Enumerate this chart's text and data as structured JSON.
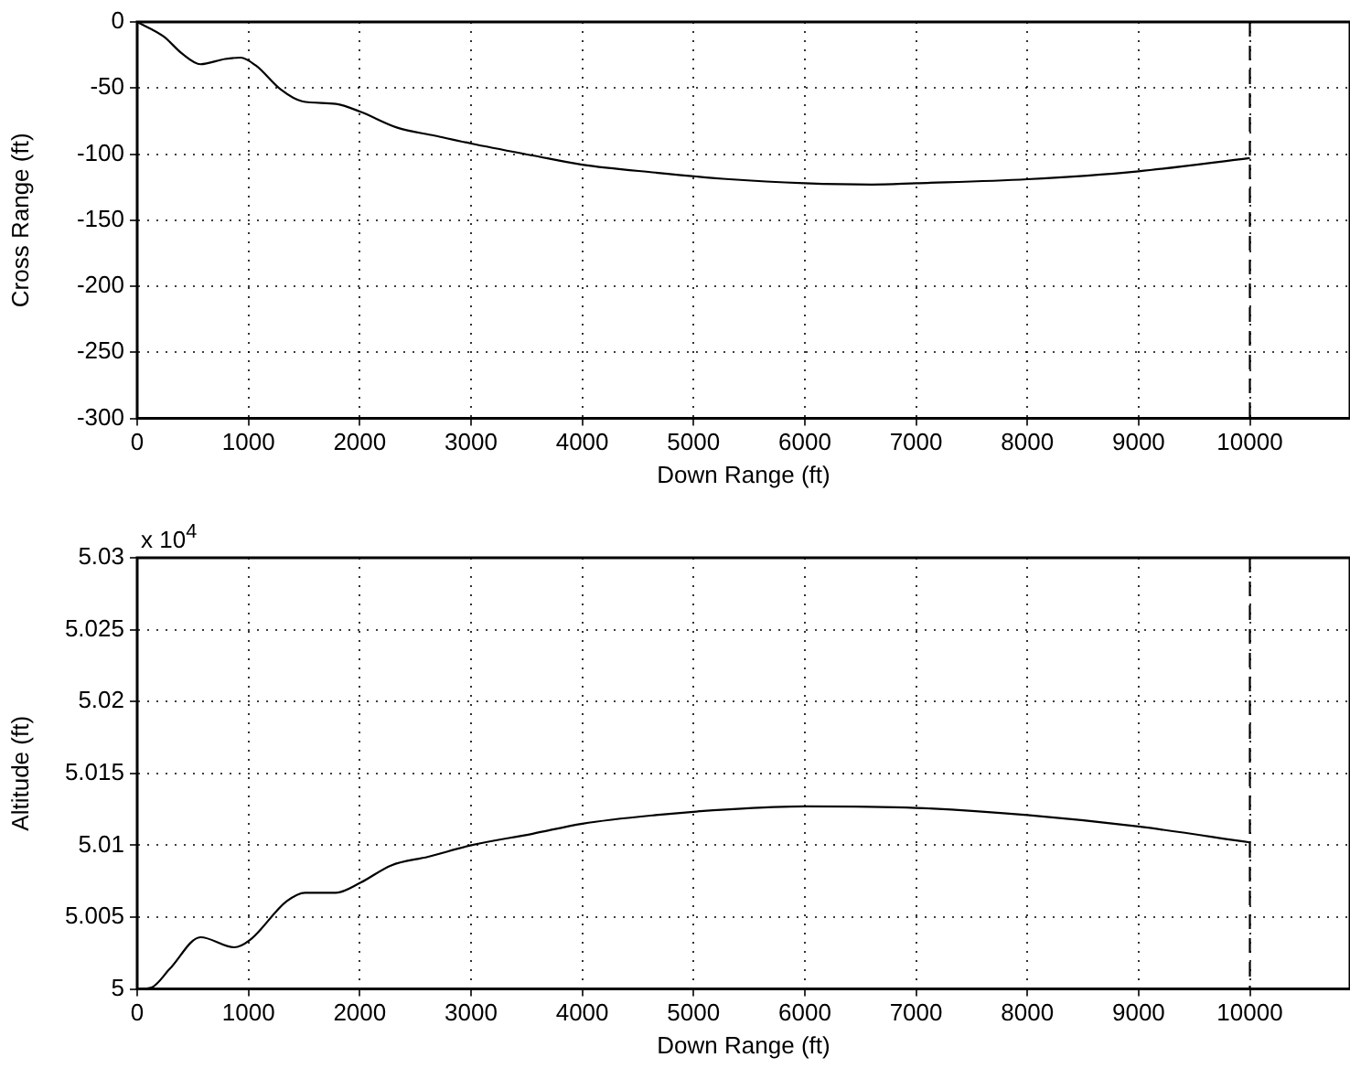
{
  "chart_data": [
    {
      "type": "line",
      "xlabel": "Down Range (ft)",
      "ylabel": "Cross Range (ft)",
      "xlim": [
        0,
        10900
      ],
      "xticks": [
        0,
        1000,
        2000,
        3000,
        4000,
        5000,
        6000,
        7000,
        8000,
        9000,
        10000
      ],
      "ylim": [
        -300,
        0
      ],
      "yticks": [
        -300,
        -250,
        -200,
        -150,
        -100,
        -50,
        0
      ],
      "grid": true,
      "legend": false,
      "marker": "none",
      "line_style": "solid",
      "series": [
        {
          "color": "#000000",
          "x": [
            0,
            238,
            404,
            569,
            790,
            929,
            1067,
            1288,
            1481,
            1786,
            2007,
            2338,
            2670,
            3002,
            3554,
            4000,
            4660,
            5323,
            6000,
            6600,
            7000,
            8000,
            9000,
            10000
          ],
          "values": [
            0,
            -11,
            -24,
            -32,
            -28,
            -27,
            -33,
            -51,
            -60,
            -62,
            -68,
            -80,
            -86,
            -92,
            -101,
            -108,
            -114,
            -119,
            -122,
            -123,
            -122,
            -119,
            -113,
            -103
          ]
        }
      ],
      "ref_lines": [
        {
          "axis": "x",
          "value": 10000,
          "color": "#000000",
          "line_style": "dashed"
        }
      ]
    },
    {
      "type": "line",
      "xlabel": "Down Range (ft)",
      "ylabel": "Altitude (ft)",
      "annotations": [
        "x 10$^{4}$"
      ],
      "xlim": [
        0,
        10900
      ],
      "xticks": [
        0,
        1000,
        2000,
        3000,
        4000,
        5000,
        6000,
        7000,
        8000,
        9000,
        10000
      ],
      "ylim": [
        5,
        5.03
      ],
      "yticks": [
        5,
        5.005,
        5.01,
        5.015,
        5.02,
        5.025,
        5.03
      ],
      "grid": true,
      "legend": false,
      "marker": "none",
      "line_style": "solid",
      "series": [
        {
          "color": "#000000",
          "x": [
            0,
            127,
            293,
            569,
            873,
            1012,
            1343,
            1509,
            1786,
            2007,
            2283,
            2615,
            3002,
            3554,
            4000,
            4660,
            5323,
            6000,
            7000,
            8000,
            9000,
            10000
          ],
          "values": [
            5,
            5.0001,
            5.0014,
            5.0036,
            5.0029,
            5.0034,
            5.0061,
            5.0067,
            5.0067,
            5.0074,
            5.0086,
            5.0092,
            5.01,
            5.0108,
            5.0115,
            5.0121,
            5.0125,
            5.0127,
            5.0126,
            5.0121,
            5.0113,
            5.0102
          ]
        }
      ],
      "ref_lines": [
        {
          "axis": "x",
          "value": 10000,
          "color": "#000000",
          "line_style": "dashed"
        }
      ]
    }
  ]
}
